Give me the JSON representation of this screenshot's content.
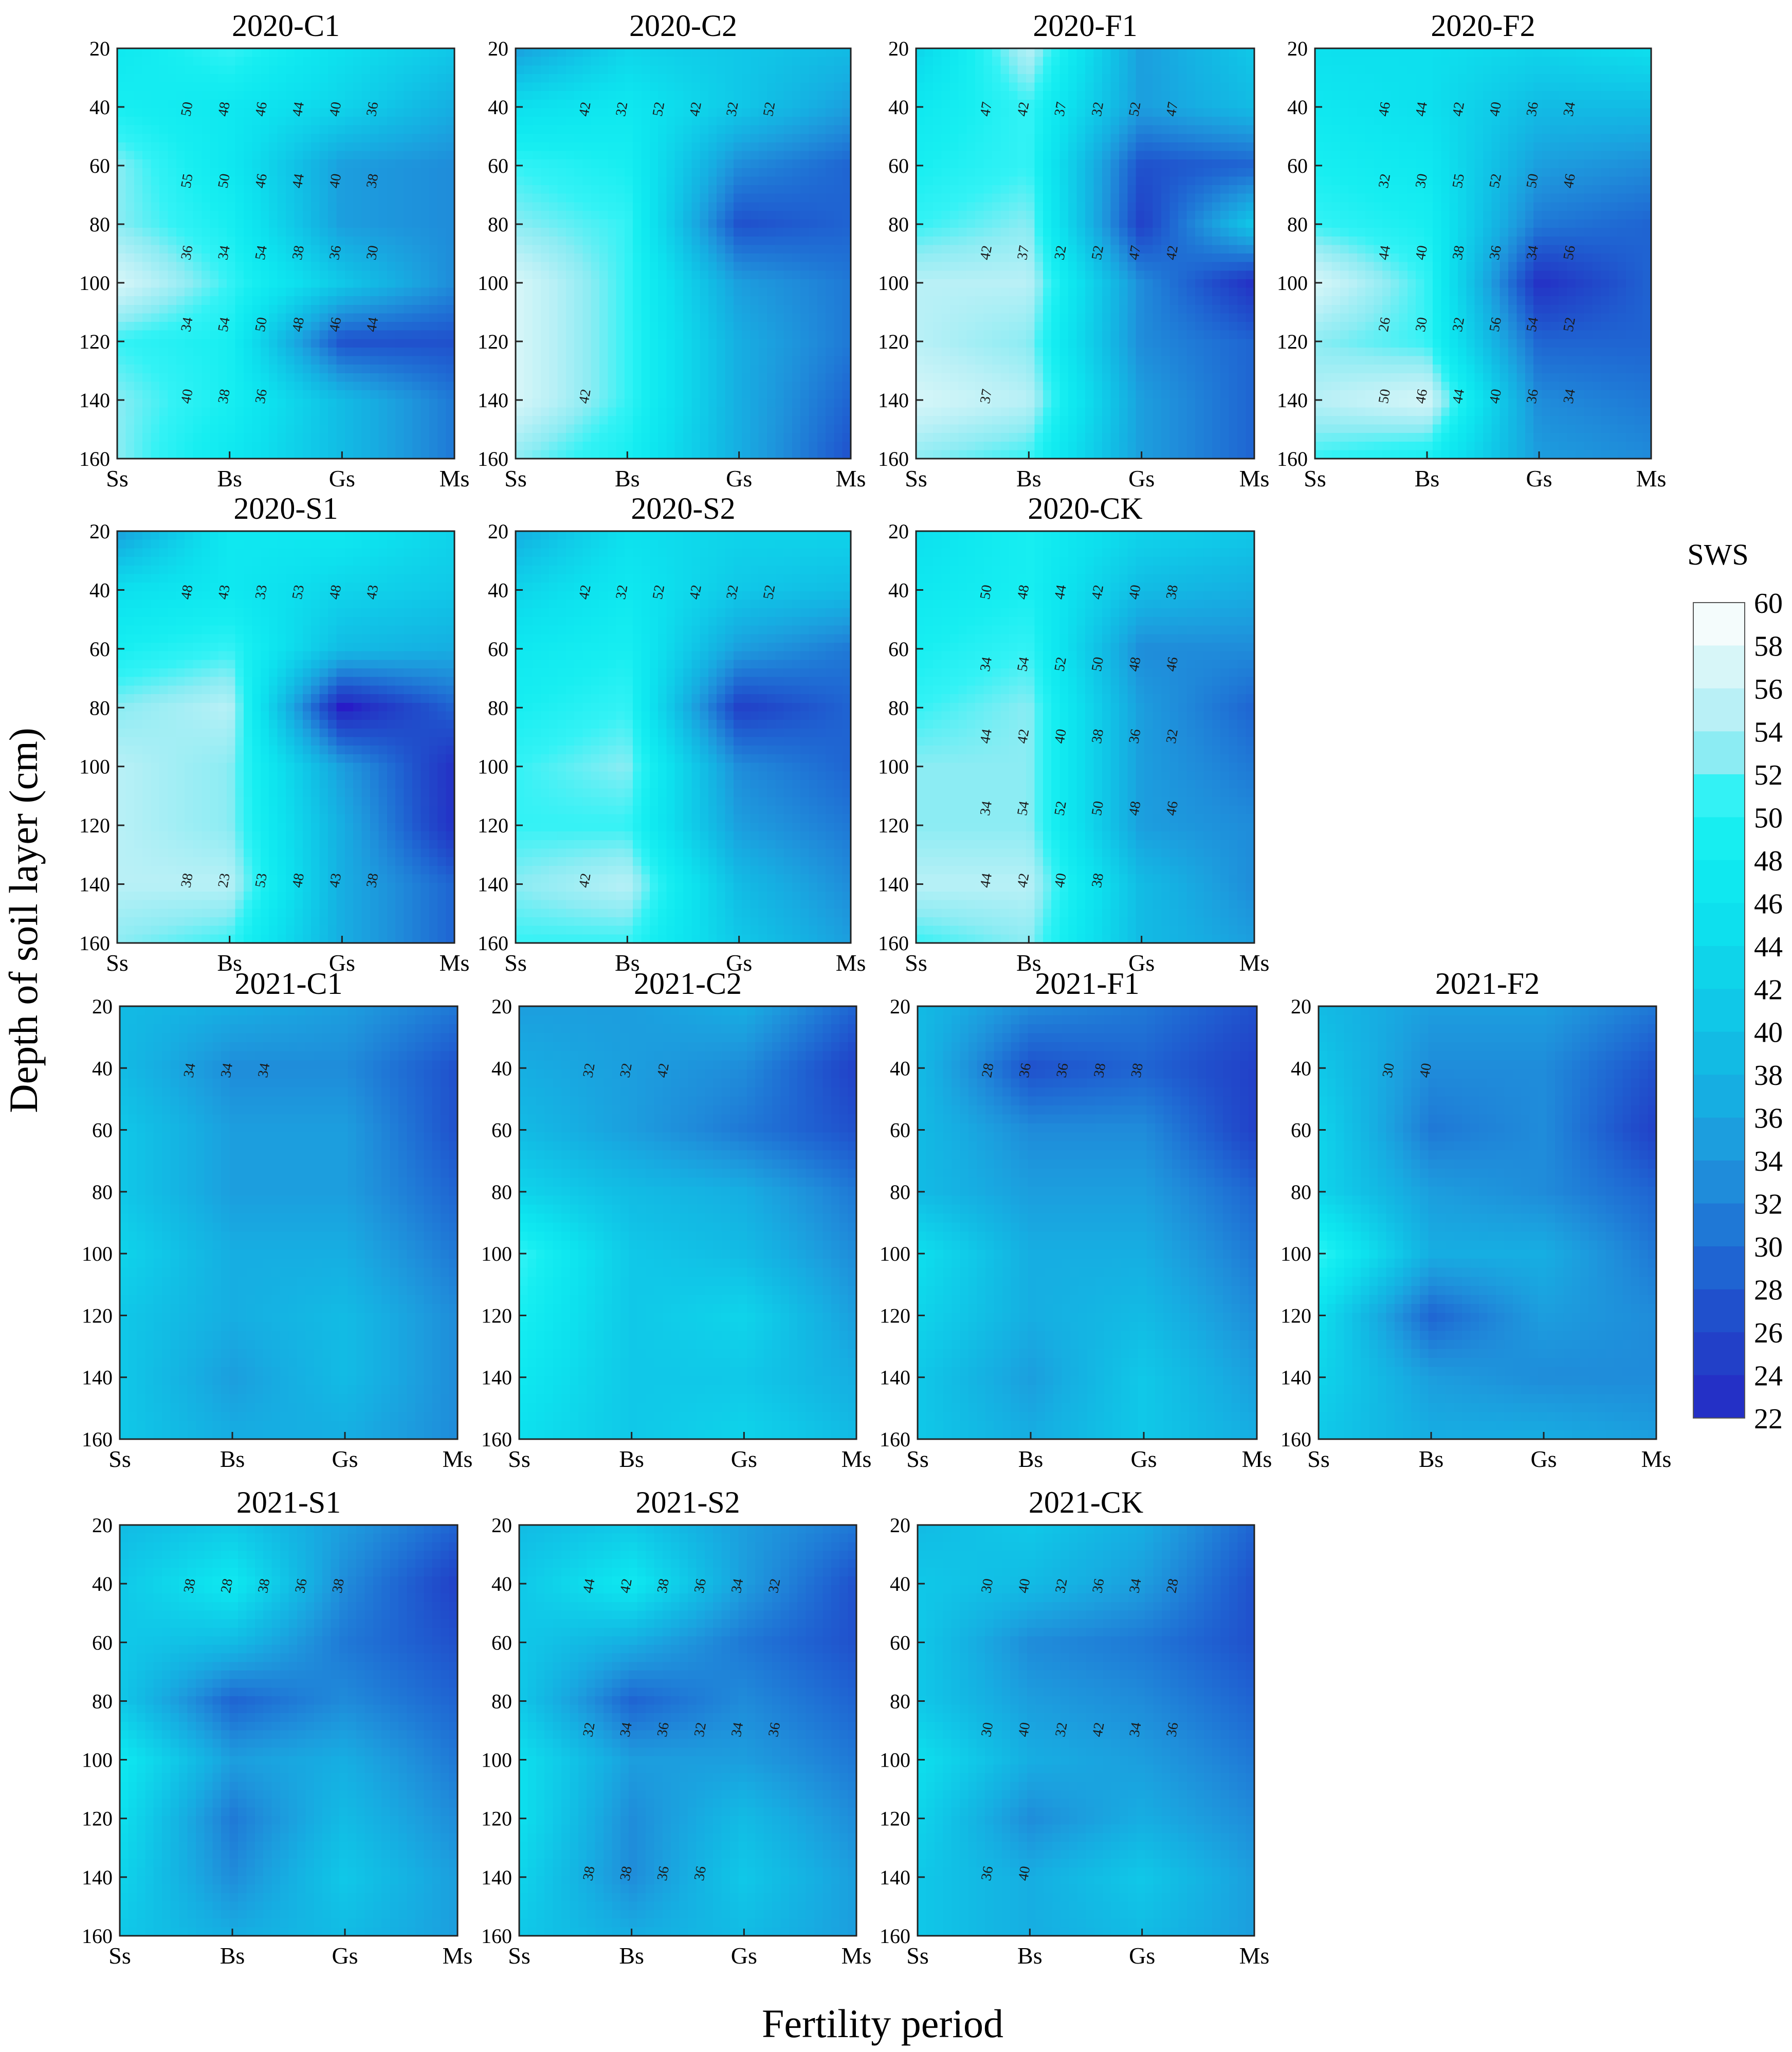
{
  "figure": {
    "y_axis_label": "Depth of soil layer (cm)",
    "x_axis_label": "Fertility period",
    "colorbar_title": "SWS"
  },
  "colorbar": {
    "ticks": [
      60,
      58,
      56,
      54,
      52,
      50,
      48,
      46,
      44,
      42,
      40,
      38,
      36,
      34,
      32,
      30,
      28,
      26,
      24,
      22
    ],
    "colors": {
      "60": "#f4fcfc",
      "58": "#d7f6f8",
      "56": "#b9f0f6",
      "54": "#8cecf3",
      "52": "#33f2f5",
      "50": "#17eef1",
      "48": "#0fe8f0",
      "46": "#0de0ee",
      "44": "#0fd4ea",
      "42": "#10c8e8",
      "40": "#12bbe4",
      "38": "#16aee2",
      "36": "#1c9ede",
      "34": "#1f8cda",
      "32": "#1f78d6",
      "30": "#1f64d2",
      "28": "#2050cc",
      "26": "#2240c8",
      "24": "#2430c6",
      "22": "#2a12c8"
    }
  },
  "chart_data": [
    {
      "type": "heatmap",
      "title": "2020-C1",
      "x_categories": [
        "Ss",
        "Bs",
        "Gs",
        "Ms"
      ],
      "y_ticks": [
        20,
        40,
        60,
        80,
        100,
        120,
        140,
        160
      ],
      "ylim": [
        20,
        160
      ],
      "grid": [
        [
          48,
          52,
          46,
          42
        ],
        [
          50,
          48,
          44,
          38
        ],
        [
          54,
          48,
          36,
          34
        ],
        [
          54,
          50,
          36,
          34
        ],
        [
          58,
          52,
          42,
          34
        ],
        [
          52,
          50,
          28,
          28
        ],
        [
          54,
          50,
          40,
          32
        ],
        [
          54,
          48,
          40,
          32
        ]
      ],
      "contour_labels": [
        "50",
        "48",
        "46",
        "44",
        "40",
        "36",
        "55",
        "50",
        "46",
        "44",
        "40",
        "38",
        "36",
        "34",
        "54",
        "38",
        "36",
        "30",
        "34",
        "54",
        "50",
        "48",
        "46",
        "44",
        "40",
        "38",
        "36"
      ]
    },
    {
      "type": "heatmap",
      "title": "2020-C2",
      "x_categories": [
        "Ss",
        "Bs",
        "Gs",
        "Ms"
      ],
      "y_ticks": [
        20,
        40,
        60,
        80,
        100,
        120,
        140,
        160
      ],
      "ylim": [
        20,
        160
      ],
      "grid": [
        [
          36,
          44,
          42,
          40
        ],
        [
          46,
          48,
          42,
          36
        ],
        [
          52,
          50,
          34,
          30
        ],
        [
          54,
          52,
          28,
          30
        ],
        [
          58,
          52,
          36,
          32
        ],
        [
          58,
          52,
          38,
          32
        ],
        [
          58,
          52,
          38,
          30
        ],
        [
          54,
          50,
          38,
          28
        ]
      ],
      "contour_labels": [
        "42",
        "32",
        "52",
        "42",
        "32",
        "52",
        "42"
      ]
    },
    {
      "type": "heatmap",
      "title": "2020-F1",
      "x_categories": [
        "Ss",
        "Bs",
        "Gs",
        "Ms"
      ],
      "y_ticks": [
        20,
        40,
        60,
        80,
        100,
        120,
        140,
        160
      ],
      "ylim": [
        20,
        160
      ],
      "grid": [
        [
          44,
          56,
          36,
          42
        ],
        [
          48,
          52,
          36,
          40
        ],
        [
          50,
          52,
          28,
          30
        ],
        [
          52,
          54,
          26,
          42
        ],
        [
          56,
          56,
          34,
          24
        ],
        [
          56,
          54,
          34,
          30
        ],
        [
          58,
          56,
          36,
          30
        ],
        [
          54,
          52,
          36,
          30
        ]
      ],
      "contour_labels": [
        "47",
        "42",
        "37",
        "32",
        "52",
        "47",
        "42",
        "37",
        "32",
        "52",
        "47",
        "42",
        "37"
      ]
    },
    {
      "type": "heatmap",
      "title": "2020-F2",
      "x_categories": [
        "Ss",
        "Bs",
        "Gs",
        "Ms"
      ],
      "y_ticks": [
        20,
        40,
        60,
        80,
        100,
        120,
        140,
        160
      ],
      "ylim": [
        20,
        160
      ],
      "grid": [
        [
          46,
          46,
          44,
          46
        ],
        [
          48,
          46,
          40,
          40
        ],
        [
          50,
          48,
          36,
          34
        ],
        [
          52,
          50,
          32,
          30
        ],
        [
          58,
          52,
          24,
          30
        ],
        [
          54,
          52,
          30,
          30
        ],
        [
          56,
          58,
          34,
          32
        ],
        [
          52,
          50,
          36,
          34
        ]
      ],
      "contour_labels": [
        "46",
        "44",
        "42",
        "40",
        "36",
        "34",
        "32",
        "30",
        "55",
        "52",
        "50",
        "46",
        "44",
        "40",
        "38",
        "36",
        "34",
        "56",
        "26",
        "30",
        "32",
        "56",
        "54",
        "52",
        "50",
        "46",
        "44",
        "40",
        "36",
        "34"
      ]
    },
    {
      "type": "heatmap",
      "title": "2020-S1",
      "x_categories": [
        "Ss",
        "Bs",
        "Gs",
        "Ms"
      ],
      "y_ticks": [
        20,
        40,
        60,
        80,
        100,
        120,
        140,
        160
      ],
      "ylim": [
        20,
        160
      ],
      "grid": [
        [
          36,
          48,
          48,
          44
        ],
        [
          46,
          48,
          44,
          42
        ],
        [
          50,
          52,
          40,
          38
        ],
        [
          54,
          56,
          22,
          30
        ],
        [
          56,
          54,
          36,
          24
        ],
        [
          56,
          54,
          38,
          24
        ],
        [
          56,
          56,
          38,
          30
        ],
        [
          54,
          52,
          38,
          30
        ]
      ],
      "contour_labels": [
        "48",
        "43",
        "33",
        "53",
        "48",
        "43",
        "38",
        "23",
        "53",
        "48",
        "43",
        "38"
      ]
    },
    {
      "type": "heatmap",
      "title": "2020-S2",
      "x_categories": [
        "Ss",
        "Bs",
        "Gs",
        "Ms"
      ],
      "y_ticks": [
        20,
        40,
        60,
        80,
        100,
        120,
        140,
        160
      ],
      "ylim": [
        20,
        160
      ],
      "grid": [
        [
          38,
          46,
          44,
          44
        ],
        [
          44,
          48,
          42,
          40
        ],
        [
          48,
          50,
          36,
          32
        ],
        [
          50,
          52,
          26,
          30
        ],
        [
          52,
          54,
          34,
          30
        ],
        [
          52,
          52,
          36,
          32
        ],
        [
          54,
          56,
          40,
          34
        ],
        [
          52,
          52,
          42,
          36
        ]
      ],
      "contour_labels": [
        "42",
        "32",
        "52",
        "42",
        "32",
        "52",
        "42"
      ]
    },
    {
      "type": "heatmap",
      "title": "2020-CK",
      "x_categories": [
        "Ss",
        "Bs",
        "Gs",
        "Ms"
      ],
      "y_ticks": [
        20,
        40,
        60,
        80,
        100,
        120,
        140,
        160
      ],
      "ylim": [
        20,
        160
      ],
      "grid": [
        [
          46,
          50,
          44,
          42
        ],
        [
          48,
          50,
          40,
          38
        ],
        [
          50,
          52,
          34,
          34
        ],
        [
          52,
          54,
          36,
          30
        ],
        [
          54,
          54,
          36,
          32
        ],
        [
          54,
          54,
          36,
          34
        ],
        [
          56,
          56,
          40,
          34
        ],
        [
          52,
          54,
          40,
          36
        ]
      ],
      "contour_labels": [
        "50",
        "48",
        "44",
        "42",
        "40",
        "38",
        "34",
        "54",
        "52",
        "50",
        "48",
        "46",
        "44",
        "42",
        "40",
        "38",
        "36",
        "32",
        "34",
        "54",
        "52",
        "50",
        "48",
        "46",
        "44",
        "42",
        "40",
        "38"
      ]
    },
    {
      "type": "heatmap",
      "title": "2021-C1",
      "x_categories": [
        "Ss",
        "Bs",
        "Gs",
        "Ms"
      ],
      "y_ticks": [
        20,
        40,
        60,
        80,
        100,
        120,
        140,
        160
      ],
      "ylim": [
        20,
        160
      ],
      "grid": [
        [
          40,
          38,
          36,
          32
        ],
        [
          40,
          34,
          34,
          28
        ],
        [
          42,
          36,
          36,
          28
        ],
        [
          42,
          36,
          36,
          30
        ],
        [
          44,
          38,
          38,
          32
        ],
        [
          42,
          38,
          40,
          34
        ],
        [
          42,
          36,
          40,
          34
        ],
        [
          42,
          38,
          38,
          34
        ]
      ],
      "contour_labels": [
        "34",
        "34",
        "34"
      ]
    },
    {
      "type": "heatmap",
      "title": "2021-C2",
      "x_categories": [
        "Ss",
        "Bs",
        "Gs",
        "Ms"
      ],
      "y_ticks": [
        20,
        40,
        60,
        80,
        100,
        120,
        140,
        160
      ],
      "ylim": [
        20,
        160
      ],
      "grid": [
        [
          36,
          36,
          38,
          30
        ],
        [
          38,
          36,
          34,
          26
        ],
        [
          40,
          36,
          32,
          28
        ],
        [
          44,
          40,
          38,
          32
        ],
        [
          52,
          42,
          40,
          34
        ],
        [
          50,
          42,
          44,
          36
        ],
        [
          48,
          42,
          42,
          38
        ],
        [
          46,
          42,
          44,
          40
        ]
      ],
      "contour_labels": [
        "32",
        "32",
        "42"
      ]
    },
    {
      "type": "heatmap",
      "title": "2021-F1",
      "x_categories": [
        "Ss",
        "Bs",
        "Gs",
        "Ms"
      ],
      "y_ticks": [
        20,
        40,
        60,
        80,
        100,
        120,
        140,
        160
      ],
      "ylim": [
        20,
        160
      ],
      "grid": [
        [
          40,
          34,
          32,
          28
        ],
        [
          40,
          28,
          30,
          26
        ],
        [
          40,
          34,
          34,
          26
        ],
        [
          40,
          36,
          36,
          30
        ],
        [
          46,
          38,
          38,
          32
        ],
        [
          44,
          38,
          40,
          34
        ],
        [
          42,
          36,
          42,
          36
        ],
        [
          42,
          38,
          42,
          38
        ]
      ],
      "contour_labels": [
        "28",
        "36",
        "36",
        "38",
        "38"
      ]
    },
    {
      "type": "heatmap",
      "title": "2021-F2",
      "x_categories": [
        "Ss",
        "Bs",
        "Gs",
        "Ms"
      ],
      "y_ticks": [
        20,
        40,
        60,
        80,
        100,
        120,
        140,
        160
      ],
      "ylim": [
        20,
        160
      ],
      "grid": [
        [
          40,
          36,
          36,
          32
        ],
        [
          42,
          34,
          34,
          28
        ],
        [
          44,
          32,
          34,
          26
        ],
        [
          44,
          36,
          34,
          30
        ],
        [
          52,
          38,
          38,
          32
        ],
        [
          46,
          30,
          36,
          34
        ],
        [
          44,
          36,
          34,
          34
        ],
        [
          42,
          38,
          38,
          36
        ]
      ],
      "contour_labels": [
        "30",
        "40"
      ]
    },
    {
      "type": "heatmap",
      "title": "2021-S1",
      "x_categories": [
        "Ss",
        "Bs",
        "Gs",
        "Ms"
      ],
      "y_ticks": [
        20,
        40,
        60,
        80,
        100,
        120,
        140,
        160
      ],
      "ylim": [
        20,
        160
      ],
      "grid": [
        [
          40,
          42,
          36,
          30
        ],
        [
          42,
          48,
          34,
          26
        ],
        [
          42,
          40,
          32,
          28
        ],
        [
          42,
          30,
          34,
          30
        ],
        [
          48,
          36,
          38,
          32
        ],
        [
          46,
          32,
          40,
          34
        ],
        [
          44,
          34,
          42,
          36
        ],
        [
          42,
          38,
          40,
          36
        ]
      ],
      "contour_labels": [
        "38",
        "28",
        "38",
        "36",
        "38"
      ]
    },
    {
      "type": "heatmap",
      "title": "2021-S2",
      "x_categories": [
        "Ss",
        "Bs",
        "Gs",
        "Ms"
      ],
      "y_ticks": [
        20,
        40,
        60,
        80,
        100,
        120,
        140,
        160
      ],
      "ylim": [
        20,
        160
      ],
      "grid": [
        [
          40,
          42,
          36,
          32
        ],
        [
          42,
          48,
          36,
          28
        ],
        [
          42,
          38,
          32,
          28
        ],
        [
          42,
          30,
          34,
          30
        ],
        [
          46,
          36,
          36,
          32
        ],
        [
          46,
          34,
          40,
          34
        ],
        [
          44,
          34,
          42,
          36
        ],
        [
          42,
          38,
          40,
          36
        ]
      ],
      "contour_labels": [
        "44",
        "42",
        "38",
        "36",
        "34",
        "32",
        "32",
        "34",
        "36",
        "32",
        "34",
        "36",
        "38",
        "38",
        "36",
        "36"
      ]
    },
    {
      "type": "heatmap",
      "title": "2021-CK",
      "x_categories": [
        "Ss",
        "Bs",
        "Gs",
        "Ms"
      ],
      "y_ticks": [
        20,
        40,
        60,
        80,
        100,
        120,
        140,
        160
      ],
      "ylim": [
        20,
        160
      ],
      "grid": [
        [
          40,
          42,
          38,
          30
        ],
        [
          42,
          40,
          36,
          28
        ],
        [
          42,
          34,
          32,
          28
        ],
        [
          42,
          36,
          34,
          30
        ],
        [
          46,
          38,
          36,
          32
        ],
        [
          44,
          34,
          38,
          34
        ],
        [
          42,
          38,
          42,
          36
        ],
        [
          42,
          38,
          40,
          36
        ]
      ],
      "contour_labels": [
        "30",
        "40",
        "32",
        "36",
        "34",
        "28",
        "30",
        "40",
        "32",
        "42",
        "34",
        "36",
        "36",
        "40"
      ]
    }
  ]
}
